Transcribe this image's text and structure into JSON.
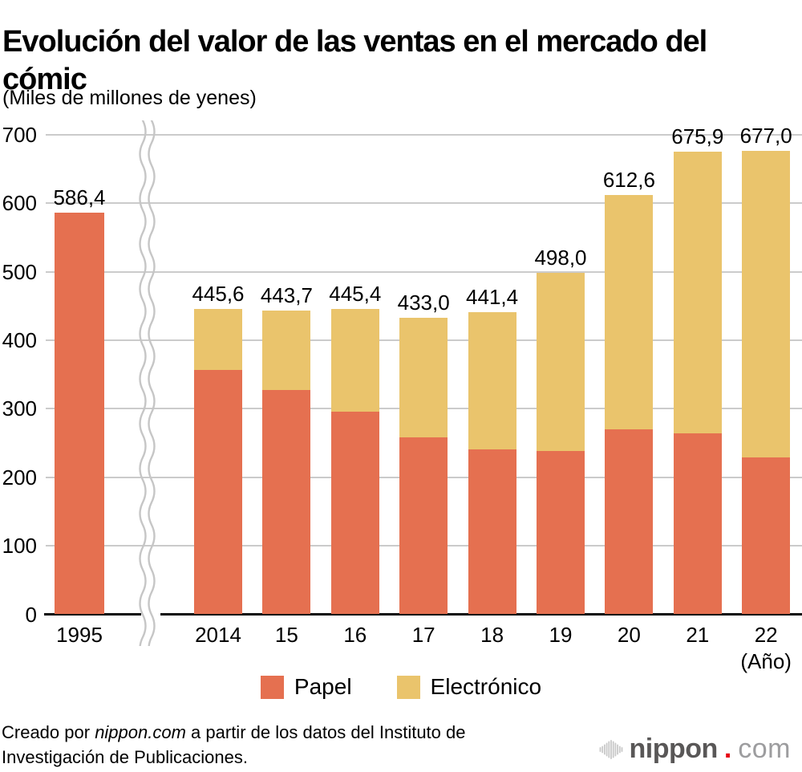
{
  "chart_data": {
    "type": "bar",
    "subtype": "stacked",
    "title": "Evolución del valor de las ventas en el mercado del cómic",
    "subtitle": "(Miles de millones de yenes)",
    "unit": "Miles de millones de yenes",
    "x_axis_unit_label": "(Año)",
    "ylim": [
      0,
      700
    ],
    "yticks": [
      0,
      100,
      200,
      300,
      400,
      500,
      600,
      700
    ],
    "grid": true,
    "legend_position": "bottom",
    "axis_break_after_first_category": true,
    "categories": [
      "1995",
      "2014",
      "15",
      "16",
      "17",
      "18",
      "19",
      "20",
      "21",
      "22"
    ],
    "series": [
      {
        "name": "Papel",
        "color": "#E57050",
        "values": [
          586.4,
          356.9,
          326.9,
          296.3,
          258.3,
          241.2,
          238.7,
          270.6,
          264.5,
          229.1
        ]
      },
      {
        "name": "Electrónico",
        "color": "#EAC46C",
        "values": [
          0,
          88.7,
          116.8,
          149.1,
          174.7,
          200.2,
          259.3,
          342.0,
          411.4,
          447.9
        ]
      }
    ],
    "totals_labels": [
      "586,4",
      "445,6",
      "443,7",
      "445,4",
      "433,0",
      "441,4",
      "498,0",
      "612,6",
      "675,9",
      "677,0"
    ]
  },
  "footer": {
    "prefix": "Creado por ",
    "brand": "nippon.com",
    "suffix": " a partir de los datos del Instituto de Investigación de Publicaciones."
  },
  "logo": {
    "name": "nippon",
    "dot": ".",
    "tld": "com"
  }
}
